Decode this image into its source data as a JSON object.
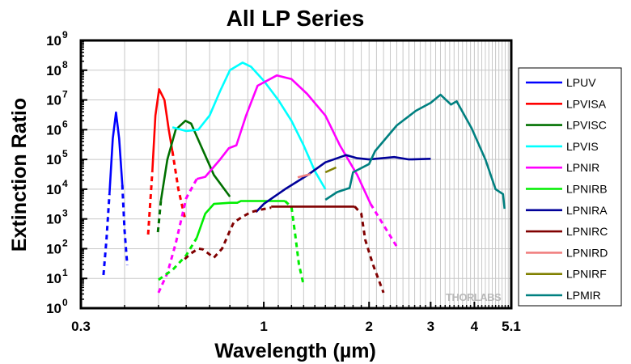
{
  "chart_data": {
    "type": "line",
    "title": "All LP Series",
    "xlabel": "Wavelength (µm)",
    "ylabel": "Extinction Ratio",
    "x_scale": "log",
    "y_scale": "log",
    "xlim": [
      0.3,
      5.1
    ],
    "ylim": [
      1,
      1000000000.0
    ],
    "grid": true,
    "legend_position": "right",
    "x_ticks": [
      {
        "value": 0.3,
        "label": "0.3"
      },
      {
        "value": 1,
        "label": "1"
      },
      {
        "value": 2,
        "label": "2"
      },
      {
        "value": 3,
        "label": "3"
      },
      {
        "value": 4,
        "label": "4"
      },
      {
        "value": 5.1,
        "label": "5.1"
      }
    ],
    "y_ticks": [
      {
        "value": 1,
        "base": "10",
        "exp": "0"
      },
      {
        "value": 10,
        "base": "10",
        "exp": "1"
      },
      {
        "value": 100,
        "base": "10",
        "exp": "2"
      },
      {
        "value": 1000,
        "base": "10",
        "exp": "3"
      },
      {
        "value": 10000,
        "base": "10",
        "exp": "4"
      },
      {
        "value": 100000,
        "base": "10",
        "exp": "5"
      },
      {
        "value": 1000000,
        "base": "10",
        "exp": "6"
      },
      {
        "value": 10000000,
        "base": "10",
        "exp": "7"
      },
      {
        "value": 100000000,
        "base": "10",
        "exp": "8"
      },
      {
        "value": 1000000000,
        "base": "10",
        "exp": "9"
      }
    ],
    "watermark": "THORLABS",
    "series": [
      {
        "name": "LPUV",
        "color": "#0000ff",
        "segments": [
          {
            "style": "dashed",
            "points": [
              [
                0.348,
                13
              ],
              [
                0.355,
                200
              ],
              [
                0.362,
                6800
              ]
            ]
          },
          {
            "style": "solid",
            "points": [
              [
                0.362,
                6800
              ],
              [
                0.37,
                500000.0
              ],
              [
                0.378,
                3800000.0
              ],
              [
                0.386,
                500000.0
              ],
              [
                0.394,
                14000.0
              ]
            ]
          },
          {
            "style": "dashed",
            "points": [
              [
                0.394,
                14000.0
              ],
              [
                0.4,
                400
              ],
              [
                0.407,
                28
              ]
            ]
          }
        ]
      },
      {
        "name": "LPVISA",
        "color": "#ff0000",
        "segments": [
          {
            "style": "dashed",
            "points": [
              [
                0.467,
                300
              ],
              [
                0.48,
                39000.0
              ]
            ]
          },
          {
            "style": "solid",
            "points": [
              [
                0.48,
                39000.0
              ],
              [
                0.49,
                3000000.0
              ],
              [
                0.502,
                23000000.0
              ],
              [
                0.52,
                10000000.0
              ],
              [
                0.535,
                1000000.0
              ],
              [
                0.548,
                190000.0
              ]
            ]
          },
          {
            "style": "dashed",
            "points": [
              [
                0.548,
                190000.0
              ],
              [
                0.57,
                10000.0
              ],
              [
                0.597,
                900
              ]
            ]
          }
        ]
      },
      {
        "name": "LPVISC",
        "color": "#007000",
        "segments": [
          {
            "style": "dashed",
            "points": [
              [
                0.498,
                360
              ],
              [
                0.508,
                4100
              ]
            ]
          },
          {
            "style": "solid",
            "points": [
              [
                0.508,
                4100
              ],
              [
                0.53,
                100000.0
              ],
              [
                0.56,
                1000000.0
              ],
              [
                0.597,
                2000000.0
              ],
              [
                0.62,
                1600000.0
              ],
              [
                0.66,
                300000.0
              ],
              [
                0.72,
                30000.0
              ],
              [
                0.8,
                5600
              ]
            ]
          }
        ]
      },
      {
        "name": "LPVIS",
        "color": "#00ffff",
        "segments": [
          {
            "style": "solid",
            "points": [
              [
                0.548,
                1200000.0
              ],
              [
                0.6,
                900000.0
              ],
              [
                0.65,
                1000000.0
              ],
              [
                0.7,
                3000000.0
              ],
              [
                0.75,
                20000000.0
              ],
              [
                0.8,
                100000000.0
              ],
              [
                0.87,
                180000000.0
              ],
              [
                0.92,
                130000000.0
              ],
              [
                1.0,
                44000000.0
              ],
              [
                1.1,
                10000000.0
              ],
              [
                1.2,
                2000000.0
              ],
              [
                1.3,
                300000.0
              ],
              [
                1.4,
                40000.0
              ],
              [
                1.5,
                10000.0
              ]
            ]
          }
        ]
      },
      {
        "name": "LPNIR",
        "color": "#ff00ff",
        "segments": [
          {
            "style": "dashed",
            "points": [
              [
                0.5,
                3.3
              ],
              [
                0.53,
                15
              ],
              [
                0.56,
                150
              ],
              [
                0.6,
                5000
              ],
              [
                0.643,
                22000.0
              ]
            ]
          },
          {
            "style": "solid",
            "points": [
              [
                0.643,
                22000.0
              ],
              [
                0.68,
                26000.0
              ],
              [
                0.75,
                100000.0
              ],
              [
                0.795,
                240000.0
              ],
              [
                0.835,
                300000.0
              ],
              [
                0.89,
                3000000.0
              ],
              [
                0.96,
                30000000.0
              ],
              [
                1.09,
                67000000.0
              ],
              [
                1.2,
                50000000.0
              ],
              [
                1.33,
                16000000.0
              ],
              [
                1.5,
                3000000.0
              ],
              [
                1.65,
                300000.0
              ],
              [
                1.85,
                30000.0
              ],
              [
                2.02,
                3200
              ]
            ]
          },
          {
            "style": "dashed",
            "points": [
              [
                2.02,
                3200
              ],
              [
                2.42,
                100
              ]
            ]
          }
        ]
      },
      {
        "name": "LPNIRB",
        "color": "#00ee00",
        "segments": [
          {
            "style": "dashed",
            "points": [
              [
                0.5,
                9
              ],
              [
                0.55,
                20
              ],
              [
                0.6,
                60
              ],
              [
                0.643,
                230
              ]
            ]
          },
          {
            "style": "solid",
            "points": [
              [
                0.643,
                230
              ],
              [
                0.68,
                1500
              ],
              [
                0.72,
                3200
              ],
              [
                0.8,
                3500
              ],
              [
                0.84,
                3500
              ],
              [
                0.86,
                4000
              ],
              [
                1.0,
                4000
              ],
              [
                1.15,
                4000
              ]
            ]
          },
          {
            "style": "dashed",
            "points": [
              [
                1.15,
                4000
              ],
              [
                1.2,
                2500
              ],
              [
                1.23,
                300
              ],
              [
                1.26,
                30
              ],
              [
                1.3,
                6
              ]
            ]
          }
        ]
      },
      {
        "name": "LPNIRA",
        "color": "#000099",
        "segments": [
          {
            "style": "solid",
            "points": [
              [
                0.95,
                1700
              ],
              [
                1.0,
                3200
              ],
              [
                1.15,
                10000.0
              ],
              [
                1.33,
                29000.0
              ],
              [
                1.5,
                80000.0
              ],
              [
                1.72,
                140000.0
              ],
              [
                1.85,
                110000.0
              ],
              [
                2.0,
                100000.0
              ],
              [
                2.36,
                120000.0
              ],
              [
                2.6,
                100000.0
              ],
              [
                3.0,
                105000.0
              ]
            ]
          }
        ]
      },
      {
        "name": "LPNIRC",
        "color": "#800000",
        "segments": [
          {
            "style": "dashed",
            "points": [
              [
                0.594,
                45
              ],
              [
                0.62,
                70
              ],
              [
                0.65,
                100
              ],
              [
                0.67,
                95
              ],
              [
                0.72,
                50
              ],
              [
                0.76,
                100
              ],
              [
                0.8,
                400
              ],
              [
                0.82,
                760
              ],
              [
                0.87,
                1200
              ],
              [
                0.92,
                1700
              ],
              [
                0.97,
                2000
              ],
              [
                1.05,
                2400
              ]
            ]
          },
          {
            "style": "solid",
            "points": [
              [
                1.05,
                2600
              ],
              [
                1.82,
                2600
              ]
            ]
          },
          {
            "style": "dashed",
            "points": [
              [
                1.82,
                2600
              ],
              [
                1.9,
                1500
              ],
              [
                1.95,
                200
              ],
              [
                2.05,
                30
              ],
              [
                2.2,
                3.3
              ]
            ]
          }
        ]
      },
      {
        "name": "LPNIRD",
        "color": "#f08080",
        "segments": [
          {
            "style": "solid",
            "points": [
              [
                1.25,
                25000.0
              ],
              [
                1.36,
                32000.0
              ]
            ]
          }
        ]
      },
      {
        "name": "LPNIRF",
        "color": "#808000",
        "segments": [
          {
            "style": "solid",
            "points": [
              [
                1.5,
                37000.0
              ],
              [
                1.61,
                54000.0
              ]
            ]
          }
        ]
      },
      {
        "name": "LPMIR",
        "color": "#008080",
        "segments": [
          {
            "style": "solid",
            "points": [
              [
                1.5,
                4400
              ],
              [
                1.62,
                8000
              ],
              [
                1.76,
                11000.0
              ],
              [
                1.8,
                37000.0
              ],
              [
                2.0,
                70000.0
              ],
              [
                2.08,
                190000.0
              ],
              [
                2.4,
                1400000.0
              ],
              [
                2.72,
                4300000.0
              ],
              [
                3.0,
                8000000.0
              ],
              [
                3.2,
                15000000.0
              ],
              [
                3.43,
                7000000.0
              ],
              [
                3.56,
                9000000.0
              ],
              [
                3.93,
                1100000.0
              ],
              [
                4.3,
                100000.0
              ],
              [
                4.6,
                10000.0
              ],
              [
                4.83,
                6800
              ],
              [
                4.88,
                2200
              ]
            ]
          }
        ]
      }
    ]
  }
}
